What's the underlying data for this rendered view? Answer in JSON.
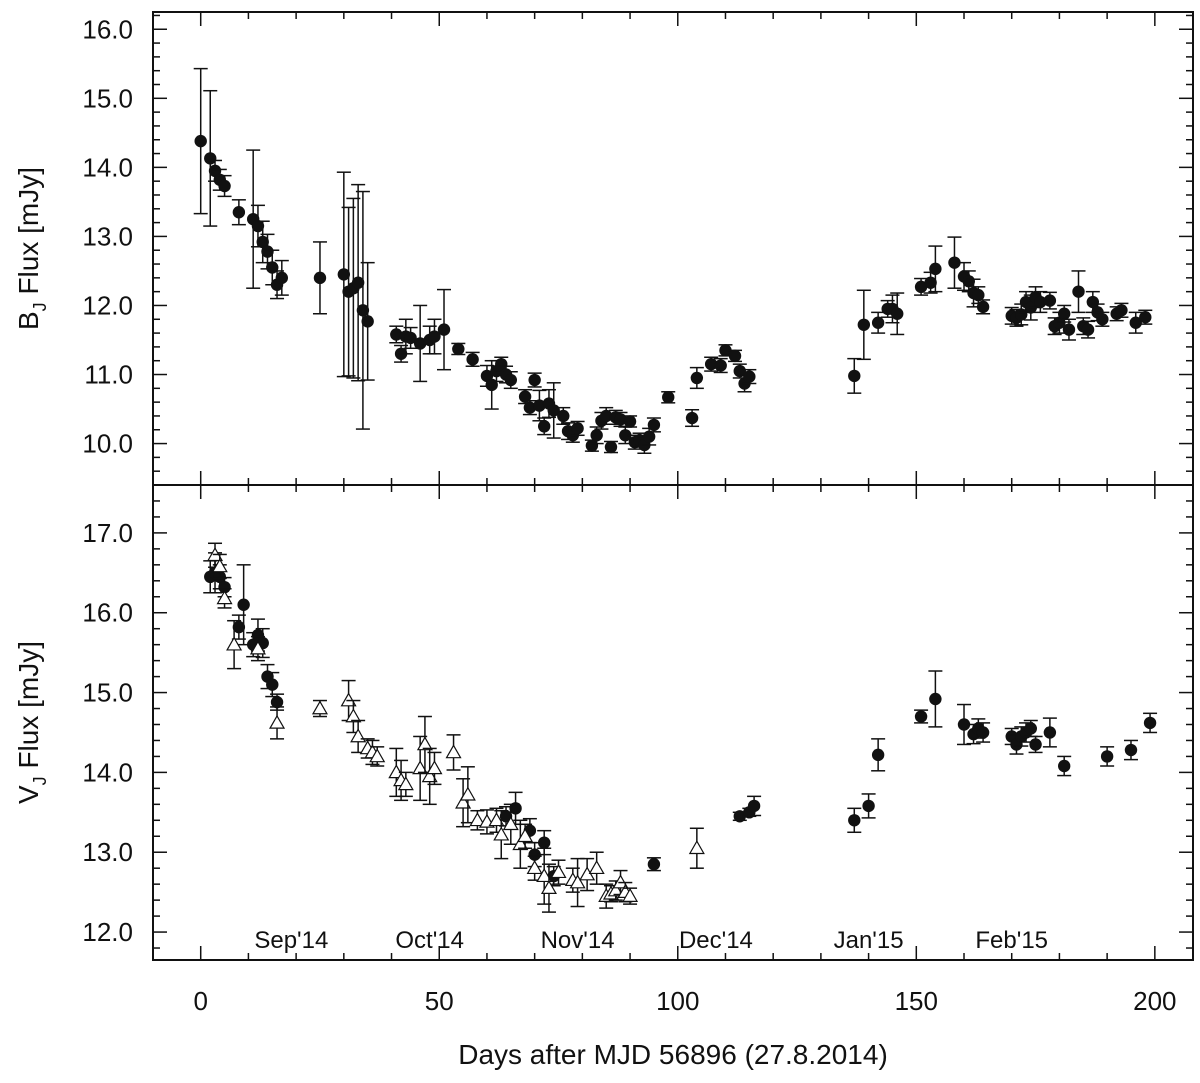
{
  "chart_data": [
    {
      "type": "scatter",
      "panel": "top",
      "ylabel_main": "B",
      "ylabel_sub": "J",
      "ylabel_rest": " Flux [mJy]",
      "xlim": [
        -10,
        208
      ],
      "ylim": [
        9.4,
        16.25
      ],
      "yticks": [
        10.0,
        11.0,
        12.0,
        13.0,
        14.0,
        15.0,
        16.0
      ],
      "ytick_labels": [
        "10.0",
        "11.0",
        "12.0",
        "13.0",
        "14.0",
        "15.0",
        "16.0"
      ],
      "series": [
        {
          "name": "B_J filled circles",
          "marker": "circle",
          "points": [
            [
              0,
              14.38,
              1.05
            ],
            [
              2,
              14.13,
              0.98
            ],
            [
              3,
              13.95,
              0.15
            ],
            [
              4,
              13.82,
              0.15
            ],
            [
              5,
              13.73,
              0.15
            ],
            [
              8,
              13.35,
              0.18
            ],
            [
              11,
              13.25,
              1.0
            ],
            [
              12,
              13.15,
              0.3
            ],
            [
              13,
              12.92,
              0.3
            ],
            [
              14,
              12.78,
              0.25
            ],
            [
              15,
              12.55,
              0.25
            ],
            [
              16,
              12.3,
              0.2
            ],
            [
              17,
              12.4,
              0.25
            ],
            [
              25,
              12.4,
              0.52
            ],
            [
              30,
              12.45,
              1.48
            ],
            [
              31,
              12.2,
              1.22
            ],
            [
              32,
              12.25,
              1.3
            ],
            [
              33,
              12.33,
              1.42
            ],
            [
              34,
              11.93,
              1.72
            ],
            [
              35,
              11.77,
              0.85
            ],
            [
              41,
              11.58,
              0.12
            ],
            [
              42,
              11.3,
              0.12
            ],
            [
              43,
              11.55,
              0.25
            ],
            [
              44,
              11.53,
              0.15
            ],
            [
              46,
              11.45,
              0.55
            ],
            [
              48,
              11.5,
              0.2
            ],
            [
              49,
              11.55,
              0.25
            ],
            [
              51,
              11.65,
              0.58
            ],
            [
              54,
              11.37,
              0.08
            ],
            [
              57,
              11.22,
              0.1
            ],
            [
              60,
              10.98,
              0.15
            ],
            [
              61,
              10.85,
              0.35
            ],
            [
              62,
              11.05,
              0.15
            ],
            [
              63,
              11.15,
              0.1
            ],
            [
              64,
              11.0,
              0.12
            ],
            [
              65,
              10.92,
              0.12
            ],
            [
              68,
              10.68,
              0.1
            ],
            [
              69,
              10.52,
              0.1
            ],
            [
              70,
              10.92,
              0.1
            ],
            [
              71,
              10.55,
              0.22
            ],
            [
              72,
              10.25,
              0.12
            ],
            [
              73,
              10.58,
              0.2
            ],
            [
              74,
              10.48,
              0.4
            ],
            [
              76,
              10.4,
              0.12
            ],
            [
              77,
              10.18,
              0.12
            ],
            [
              78,
              10.12,
              0.1
            ],
            [
              79,
              10.22,
              0.1
            ],
            [
              82,
              9.97,
              0.08
            ],
            [
              83,
              10.12,
              0.12
            ],
            [
              84,
              10.33,
              0.12
            ],
            [
              85,
              10.4,
              0.12
            ],
            [
              86,
              9.95,
              0.08
            ],
            [
              87,
              10.38,
              0.1
            ],
            [
              88,
              10.35,
              0.1
            ],
            [
              89,
              10.12,
              0.12
            ],
            [
              90,
              10.32,
              0.08
            ],
            [
              91,
              10.02,
              0.1
            ],
            [
              92,
              10.05,
              0.1
            ],
            [
              93,
              9.98,
              0.12
            ],
            [
              94,
              10.1,
              0.12
            ],
            [
              95,
              10.27,
              0.1
            ],
            [
              98,
              10.67,
              0.08
            ],
            [
              103,
              10.37,
              0.12
            ],
            [
              104,
              10.95,
              0.15
            ],
            [
              107,
              11.15,
              0.1
            ],
            [
              109,
              11.13,
              0.1
            ],
            [
              110,
              11.35,
              0.08
            ],
            [
              112,
              11.27,
              0.08
            ],
            [
              113,
              11.05,
              0.1
            ],
            [
              114,
              10.87,
              0.12
            ],
            [
              115,
              10.97,
              0.1
            ],
            [
              137,
              10.98,
              0.25
            ],
            [
              139,
              11.72,
              0.5
            ],
            [
              142,
              11.75,
              0.15
            ],
            [
              144,
              11.95,
              0.12
            ],
            [
              145,
              11.95,
              0.2
            ],
            [
              146,
              11.88,
              0.3
            ],
            [
              151,
              12.27,
              0.12
            ],
            [
              153,
              12.33,
              0.15
            ],
            [
              154,
              12.53,
              0.33
            ],
            [
              158,
              12.62,
              0.37
            ],
            [
              160,
              12.42,
              0.2
            ],
            [
              161,
              12.35,
              0.15
            ],
            [
              162,
              12.18,
              0.2
            ],
            [
              163,
              12.15,
              0.12
            ],
            [
              164,
              11.98,
              0.1
            ],
            [
              170,
              11.85,
              0.12
            ],
            [
              171,
              11.82,
              0.12
            ],
            [
              172,
              11.87,
              0.15
            ],
            [
              173,
              12.05,
              0.15
            ],
            [
              174,
              11.97,
              0.18
            ],
            [
              175,
              12.12,
              0.15
            ],
            [
              176,
              12.05,
              0.15
            ],
            [
              178,
              12.07,
              0.12
            ],
            [
              179,
              11.7,
              0.12
            ],
            [
              180,
              11.75,
              0.15
            ],
            [
              181,
              11.88,
              0.12
            ],
            [
              182,
              11.65,
              0.15
            ],
            [
              184,
              12.2,
              0.3
            ],
            [
              185,
              11.7,
              0.12
            ],
            [
              186,
              11.65,
              0.12
            ],
            [
              187,
              12.05,
              0.15
            ],
            [
              188,
              11.9,
              0.12
            ],
            [
              189,
              11.8,
              0.1
            ],
            [
              192,
              11.88,
              0.1
            ],
            [
              193,
              11.93,
              0.1
            ],
            [
              196,
              11.75,
              0.15
            ],
            [
              198,
              11.83,
              0.1
            ]
          ]
        }
      ]
    },
    {
      "type": "scatter",
      "panel": "bottom",
      "ylabel_main": "V",
      "ylabel_sub": "J",
      "ylabel_rest": " Flux [mJy]",
      "xlabel": "Days after MJD 56896 (27.8.2014)",
      "xlim": [
        -10,
        208
      ],
      "ylim": [
        11.65,
        17.6
      ],
      "xticks": [
        0,
        50,
        100,
        150,
        200
      ],
      "xtick_labels": [
        "0",
        "50",
        "100",
        "150",
        "200"
      ],
      "yticks": [
        12.0,
        13.0,
        14.0,
        15.0,
        16.0,
        17.0
      ],
      "ytick_labels": [
        "12.0",
        "13.0",
        "14.0",
        "15.0",
        "16.0",
        "17.0"
      ],
      "month_labels": [
        {
          "day": 19,
          "text": "Sep'14"
        },
        {
          "day": 48,
          "text": "Oct'14"
        },
        {
          "day": 79,
          "text": "Nov'14"
        },
        {
          "day": 108,
          "text": "Dec'14"
        },
        {
          "day": 140,
          "text": "Jan'15"
        },
        {
          "day": 170,
          "text": "Feb'15"
        }
      ],
      "series": [
        {
          "name": "V_J filled circles",
          "marker": "circle",
          "points": [
            [
              2,
              16.45,
              0.2
            ],
            [
              3,
              16.5,
              0.25
            ],
            [
              4,
              16.45,
              0.15
            ],
            [
              5,
              16.32,
              0.12
            ],
            [
              8,
              15.82,
              0.15
            ],
            [
              9,
              16.1,
              0.5
            ],
            [
              11,
              15.6,
              0.15
            ],
            [
              12,
              15.72,
              0.2
            ],
            [
              13,
              15.62,
              0.18
            ],
            [
              14,
              15.2,
              0.15
            ],
            [
              15,
              15.1,
              0.15
            ],
            [
              16,
              14.88,
              0.1
            ],
            [
              64,
              13.45,
              0.12
            ],
            [
              66,
              13.55,
              0.2
            ],
            [
              69,
              13.27,
              0.15
            ],
            [
              70,
              12.97,
              0.15
            ],
            [
              72,
              13.12,
              0.15
            ],
            [
              74,
              12.7,
              0.12
            ],
            [
              95,
              12.85,
              0.08
            ],
            [
              113,
              13.45,
              0.05
            ],
            [
              115,
              13.5,
              0.05
            ],
            [
              116,
              13.58,
              0.12
            ],
            [
              137,
              13.4,
              0.15
            ],
            [
              140,
              13.58,
              0.15
            ],
            [
              142,
              14.22,
              0.2
            ],
            [
              151,
              14.7,
              0.08
            ],
            [
              154,
              14.92,
              0.35
            ],
            [
              160,
              14.6,
              0.25
            ],
            [
              162,
              14.48,
              0.12
            ],
            [
              163,
              14.55,
              0.12
            ],
            [
              164,
              14.5,
              0.12
            ],
            [
              170,
              14.45,
              0.1
            ],
            [
              171,
              14.35,
              0.12
            ],
            [
              172,
              14.45,
              0.12
            ],
            [
              173,
              14.5,
              0.12
            ],
            [
              174,
              14.55,
              0.1
            ],
            [
              175,
              14.35,
              0.1
            ],
            [
              178,
              14.5,
              0.18
            ],
            [
              181,
              14.08,
              0.12
            ],
            [
              190,
              14.2,
              0.12
            ],
            [
              195,
              14.28,
              0.12
            ],
            [
              199,
              14.62,
              0.12
            ]
          ]
        },
        {
          "name": "V_J open triangles",
          "marker": "triangle",
          "points": [
            [
              3,
              16.72,
              0.15
            ],
            [
              4,
              16.58,
              0.15
            ],
            [
              5,
              16.18,
              0.12
            ],
            [
              7,
              15.6,
              0.3
            ],
            [
              12,
              15.55,
              0.15
            ],
            [
              16,
              14.62,
              0.2
            ],
            [
              25,
              14.8,
              0.1
            ],
            [
              31,
              14.9,
              0.25
            ],
            [
              32,
              14.7,
              0.2
            ],
            [
              33,
              14.45,
              0.2
            ],
            [
              35,
              14.3,
              0.12
            ],
            [
              36,
              14.25,
              0.15
            ],
            [
              37,
              14.2,
              0.12
            ],
            [
              41,
              14.0,
              0.3
            ],
            [
              42,
              13.9,
              0.25
            ],
            [
              43,
              13.85,
              0.15
            ],
            [
              46,
              14.05,
              0.4
            ],
            [
              47,
              14.35,
              0.35
            ],
            [
              48,
              13.95,
              0.35
            ],
            [
              49,
              14.05,
              0.2
            ],
            [
              53,
              14.25,
              0.22
            ],
            [
              55,
              13.62,
              0.3
            ],
            [
              56,
              13.72,
              0.35
            ],
            [
              58,
              13.4,
              0.12
            ],
            [
              60,
              13.38,
              0.15
            ],
            [
              62,
              13.4,
              0.15
            ],
            [
              63,
              13.22,
              0.3
            ],
            [
              65,
              13.35,
              0.25
            ],
            [
              67,
              13.1,
              0.3
            ],
            [
              68,
              13.2,
              0.15
            ],
            [
              70,
              12.8,
              0.15
            ],
            [
              72,
              12.7,
              0.35
            ],
            [
              73,
              12.55,
              0.3
            ],
            [
              75,
              12.75,
              0.15
            ],
            [
              78,
              12.65,
              0.15
            ],
            [
              79,
              12.62,
              0.3
            ],
            [
              81,
              12.72,
              0.2
            ],
            [
              83,
              12.8,
              0.2
            ],
            [
              85,
              12.45,
              0.15
            ],
            [
              86,
              12.48,
              0.1
            ],
            [
              87,
              12.52,
              0.12
            ],
            [
              88,
              12.62,
              0.15
            ],
            [
              89,
              12.5,
              0.12
            ],
            [
              90,
              12.45,
              0.1
            ],
            [
              104,
              13.05,
              0.25
            ]
          ]
        }
      ]
    }
  ]
}
